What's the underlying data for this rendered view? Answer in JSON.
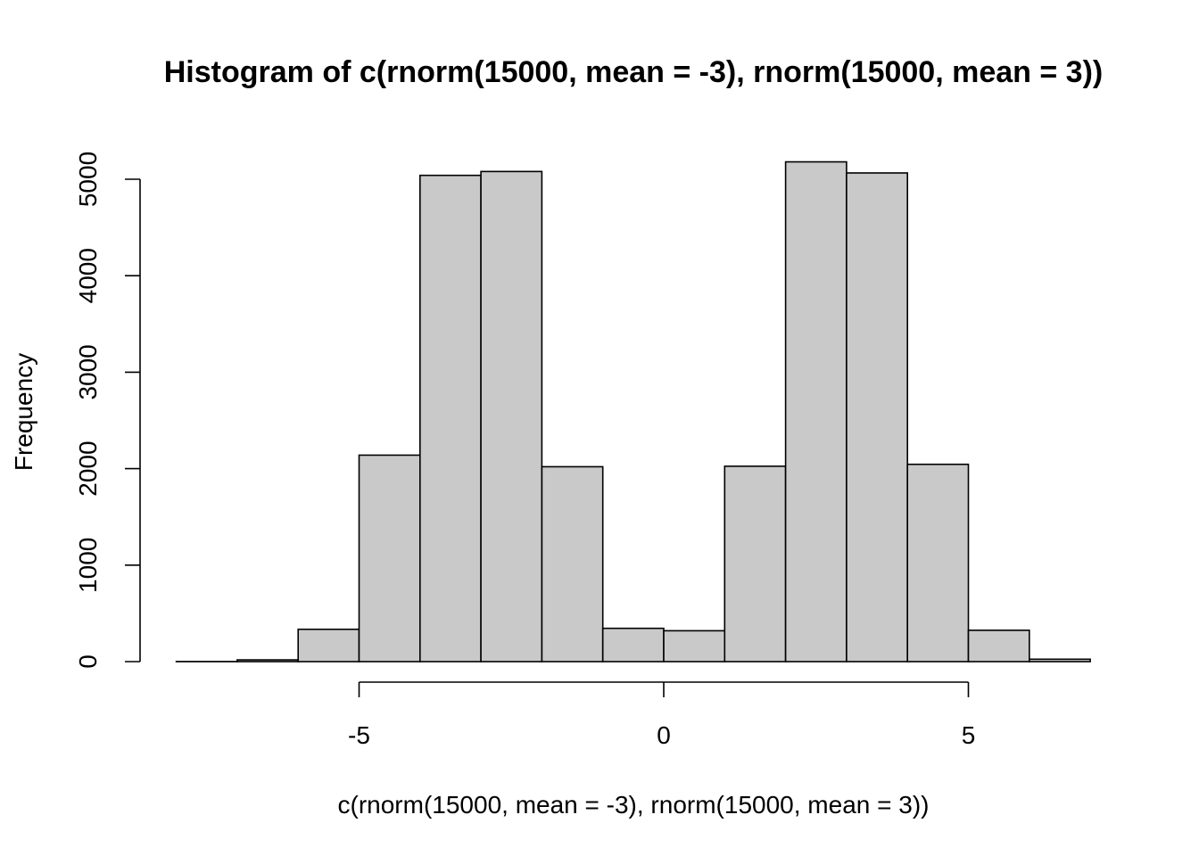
{
  "chart_data": {
    "type": "bar",
    "title": "Histogram of c(rnorm(15000, mean = -3), rnorm(15000, mean = 3))",
    "xlabel": "c(rnorm(15000, mean = -3), rnorm(15000, mean = 3))",
    "ylabel": "Frequency",
    "bin_edges": [
      -8,
      -7,
      -6,
      -5,
      -4,
      -3,
      -2,
      -1,
      0,
      1,
      2,
      3,
      4,
      5,
      6,
      7
    ],
    "values": [
      1,
      18,
      335,
      2140,
      5040,
      5080,
      2020,
      345,
      320,
      2025,
      5180,
      5065,
      2045,
      325,
      25
    ],
    "xlim": [
      -8,
      7
    ],
    "ylim": [
      0,
      5200
    ],
    "x_ticks": [
      -5,
      0,
      5
    ],
    "x_tick_labels": [
      "-5",
      "0",
      "5"
    ],
    "y_ticks": [
      0,
      1000,
      2000,
      3000,
      4000,
      5000
    ],
    "y_tick_labels": [
      "0",
      "1000",
      "2000",
      "3000",
      "4000",
      "5000"
    ],
    "grid": false,
    "legend": "none",
    "colors": {
      "bar_fill": "#c9c9c9",
      "bar_stroke": "#000000"
    }
  }
}
